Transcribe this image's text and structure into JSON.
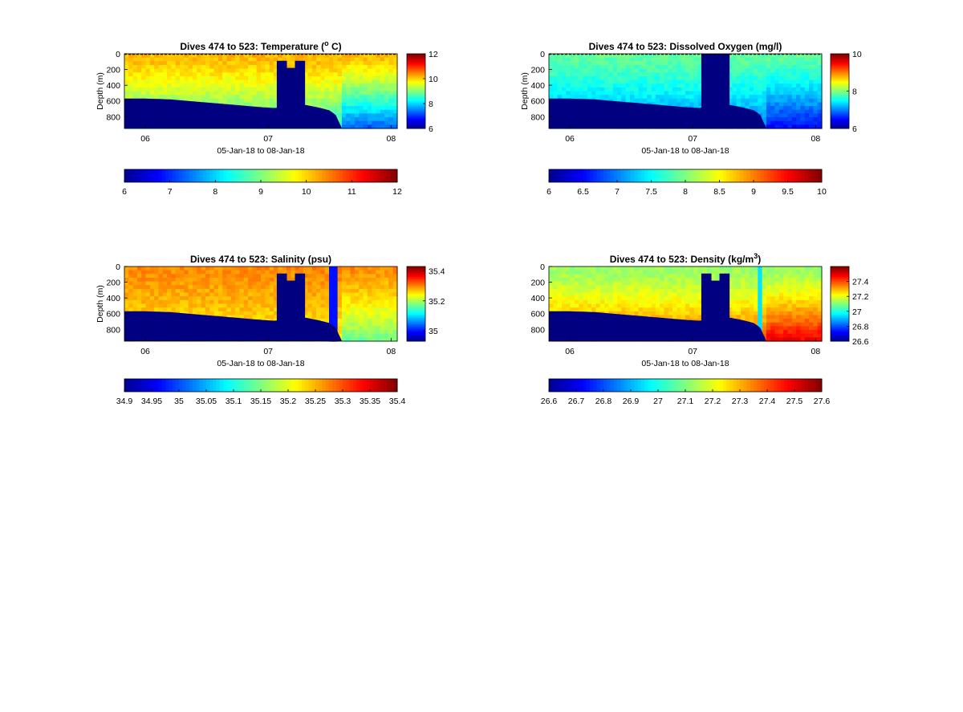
{
  "figure": {
    "background": "#ffffff"
  },
  "colormap": {
    "name": "jet",
    "stops": [
      "#00008f",
      "#0000ff",
      "#007fff",
      "#00ffff",
      "#7fff7f",
      "#ffff00",
      "#ff7f00",
      "#ff0000",
      "#800000"
    ],
    "land_color": "#000080"
  },
  "chart_data": [
    {
      "type": "heatmap",
      "id": "temperature",
      "title": "Dives 474 to 523: Temperature (",
      "title_sup": "o",
      "title_tail": " C)",
      "xlabel": "05-Jan-18 to 08-Jan-18",
      "ylabel": "Depth (m)",
      "xlim": [
        5.83,
        8.05
      ],
      "xticks": [
        6,
        7,
        8
      ],
      "xtick_labels": [
        "06",
        "07",
        "08"
      ],
      "ylim": [
        0,
        950
      ],
      "y_reversed": true,
      "yticks": [
        0,
        200,
        400,
        600,
        800
      ],
      "ytick_labels": [
        "0",
        "200",
        "400",
        "600",
        "800"
      ],
      "surface_line": "dashed",
      "clim": [
        6,
        12
      ],
      "side_colorbar_ticks": [
        6,
        8,
        10,
        12
      ],
      "side_colorbar_labels": [
        "6",
        "8",
        "10",
        "12"
      ],
      "bottom_colorbar_ticks": [
        6,
        7,
        8,
        9,
        10,
        11,
        12
      ],
      "bottom_colorbar_labels": [
        "6",
        "7",
        "8",
        "9",
        "10",
        "11",
        "12"
      ],
      "surface_value": 10.2,
      "deep_value": 8.4,
      "late_deep_value": 7.2,
      "bottom_depth": [
        [
          5.83,
          570
        ],
        [
          6.0,
          570
        ],
        [
          6.2,
          580
        ],
        [
          6.35,
          600
        ],
        [
          6.5,
          620
        ],
        [
          6.65,
          640
        ],
        [
          6.8,
          660
        ],
        [
          6.95,
          680
        ],
        [
          7.05,
          690
        ],
        [
          7.3,
          650
        ],
        [
          7.4,
          680
        ],
        [
          7.5,
          720
        ],
        [
          7.55,
          780
        ],
        [
          7.6,
          950
        ]
      ],
      "gap": {
        "x": [
          7.07,
          7.3
        ],
        "top": 90
      }
    },
    {
      "type": "heatmap",
      "id": "dissolved-oxygen",
      "title": "Dives 474 to 523: Dissolved Oxygen (mg/l)",
      "title_sup": "",
      "title_tail": "",
      "xlabel": "05-Jan-18 to 08-Jan-18",
      "ylabel": "Depth (m)",
      "xlim": [
        5.83,
        8.05
      ],
      "xticks": [
        6,
        7,
        8
      ],
      "xtick_labels": [
        "06",
        "07",
        "08"
      ],
      "ylim": [
        0,
        950
      ],
      "y_reversed": true,
      "yticks": [
        0,
        200,
        400,
        600,
        800
      ],
      "ytick_labels": [
        "0",
        "200",
        "400",
        "600",
        "800"
      ],
      "surface_line": "dashed",
      "clim": [
        6,
        10
      ],
      "side_colorbar_ticks": [
        6,
        8,
        10
      ],
      "side_colorbar_labels": [
        "6",
        "8",
        "10"
      ],
      "bottom_colorbar_ticks": [
        6,
        6.5,
        7,
        7.5,
        8,
        8.5,
        9,
        9.5,
        10
      ],
      "bottom_colorbar_labels": [
        "6",
        "6.5",
        "7",
        "7.5",
        "8",
        "8.5",
        "9",
        "9.5",
        "10"
      ],
      "surface_value": 7.9,
      "deep_value": 6.9,
      "late_deep_value": 6.5,
      "bottom_depth": [
        [
          5.83,
          570
        ],
        [
          6.0,
          570
        ],
        [
          6.2,
          580
        ],
        [
          6.35,
          600
        ],
        [
          6.5,
          620
        ],
        [
          6.65,
          640
        ],
        [
          6.8,
          660
        ],
        [
          6.95,
          680
        ],
        [
          7.05,
          690
        ],
        [
          7.3,
          650
        ],
        [
          7.4,
          680
        ],
        [
          7.5,
          720
        ],
        [
          7.55,
          780
        ],
        [
          7.6,
          950
        ]
      ],
      "gap": {
        "x": [
          7.07,
          7.3
        ],
        "top": 0
      }
    },
    {
      "type": "heatmap",
      "id": "salinity",
      "title": "Dives 474 to 523: Salinity (psu)",
      "title_sup": "",
      "title_tail": "",
      "xlabel": "05-Jan-18 to 08-Jan-18",
      "ylabel": "Depth (m)",
      "xlim": [
        5.83,
        8.05
      ],
      "xticks": [
        6,
        7,
        8
      ],
      "xtick_labels": [
        "06",
        "07",
        "08"
      ],
      "ylim": [
        0,
        950
      ],
      "y_reversed": true,
      "yticks": [
        0,
        200,
        400,
        600,
        800
      ],
      "ytick_labels": [
        "0",
        "200",
        "400",
        "600",
        "800"
      ],
      "surface_line": "none",
      "clim": [
        34.93,
        35.43
      ],
      "side_colorbar_ticks": [
        35,
        35.2,
        35.4
      ],
      "side_colorbar_labels": [
        "35",
        "35.2",
        "35.4"
      ],
      "bottom_colorbar_ticks": [
        34.9,
        34.95,
        35,
        35.05,
        35.1,
        35.15,
        35.2,
        35.25,
        35.3,
        35.35,
        35.4
      ],
      "bottom_colorbar_labels": [
        "34.9",
        "34.95",
        "35",
        "35.05",
        "35.1",
        "35.15",
        "35.2",
        "35.25",
        "35.3",
        "35.35",
        "35.4"
      ],
      "surface_value": 35.3,
      "deep_value": 35.24,
      "late_deep_value": 35.17,
      "bottom_depth": [
        [
          5.83,
          570
        ],
        [
          6.0,
          570
        ],
        [
          6.2,
          580
        ],
        [
          6.35,
          600
        ],
        [
          6.5,
          620
        ],
        [
          6.65,
          640
        ],
        [
          6.8,
          660
        ],
        [
          6.95,
          680
        ],
        [
          7.05,
          690
        ],
        [
          7.3,
          650
        ],
        [
          7.4,
          680
        ],
        [
          7.5,
          720
        ],
        [
          7.55,
          780
        ],
        [
          7.6,
          950
        ]
      ],
      "gap": {
        "x": [
          7.07,
          7.3
        ],
        "top": 90
      },
      "anomaly": {
        "x": [
          7.51,
          7.56
        ],
        "value": 35.0
      }
    },
    {
      "type": "heatmap",
      "id": "density",
      "title": "Dives 474 to 523: Density (kg/m",
      "title_sup": "3",
      "title_tail": ")",
      "xlabel": "05-Jan-18 to 08-Jan-18",
      "ylabel": "",
      "xlim": [
        5.83,
        8.05
      ],
      "xticks": [
        6,
        7,
        8
      ],
      "xtick_labels": [
        "06",
        "07",
        "08"
      ],
      "ylim": [
        0,
        950
      ],
      "y_reversed": true,
      "yticks": [
        0,
        200,
        400,
        600,
        800
      ],
      "ytick_labels": [
        "0",
        "200",
        "400",
        "600",
        "800"
      ],
      "surface_line": "none",
      "clim": [
        26.6,
        27.6
      ],
      "side_colorbar_ticks": [
        26.6,
        26.8,
        27,
        27.2,
        27.4
      ],
      "side_colorbar_labels": [
        "26.6",
        "26.8",
        "27",
        "27.2",
        "27.4"
      ],
      "bottom_colorbar_ticks": [
        26.6,
        26.7,
        26.8,
        26.9,
        27,
        27.1,
        27.2,
        27.3,
        27.4,
        27.5,
        27.6
      ],
      "bottom_colorbar_labels": [
        "26.6",
        "26.7",
        "26.8",
        "26.9",
        "27",
        "27.1",
        "27.2",
        "27.3",
        "27.4",
        "27.5",
        "27.6"
      ],
      "surface_value": 27.12,
      "deep_value": 27.4,
      "late_deep_value": 27.5,
      "bottom_depth": [
        [
          5.83,
          570
        ],
        [
          6.0,
          570
        ],
        [
          6.2,
          580
        ],
        [
          6.35,
          600
        ],
        [
          6.5,
          620
        ],
        [
          6.65,
          640
        ],
        [
          6.8,
          660
        ],
        [
          6.95,
          680
        ],
        [
          7.05,
          690
        ],
        [
          7.3,
          650
        ],
        [
          7.4,
          680
        ],
        [
          7.5,
          720
        ],
        [
          7.55,
          780
        ],
        [
          7.6,
          950
        ]
      ],
      "gap": {
        "x": [
          7.07,
          7.3
        ],
        "top": 90
      },
      "anomaly": {
        "x": [
          7.52,
          7.58
        ],
        "value": 26.95
      }
    }
  ]
}
